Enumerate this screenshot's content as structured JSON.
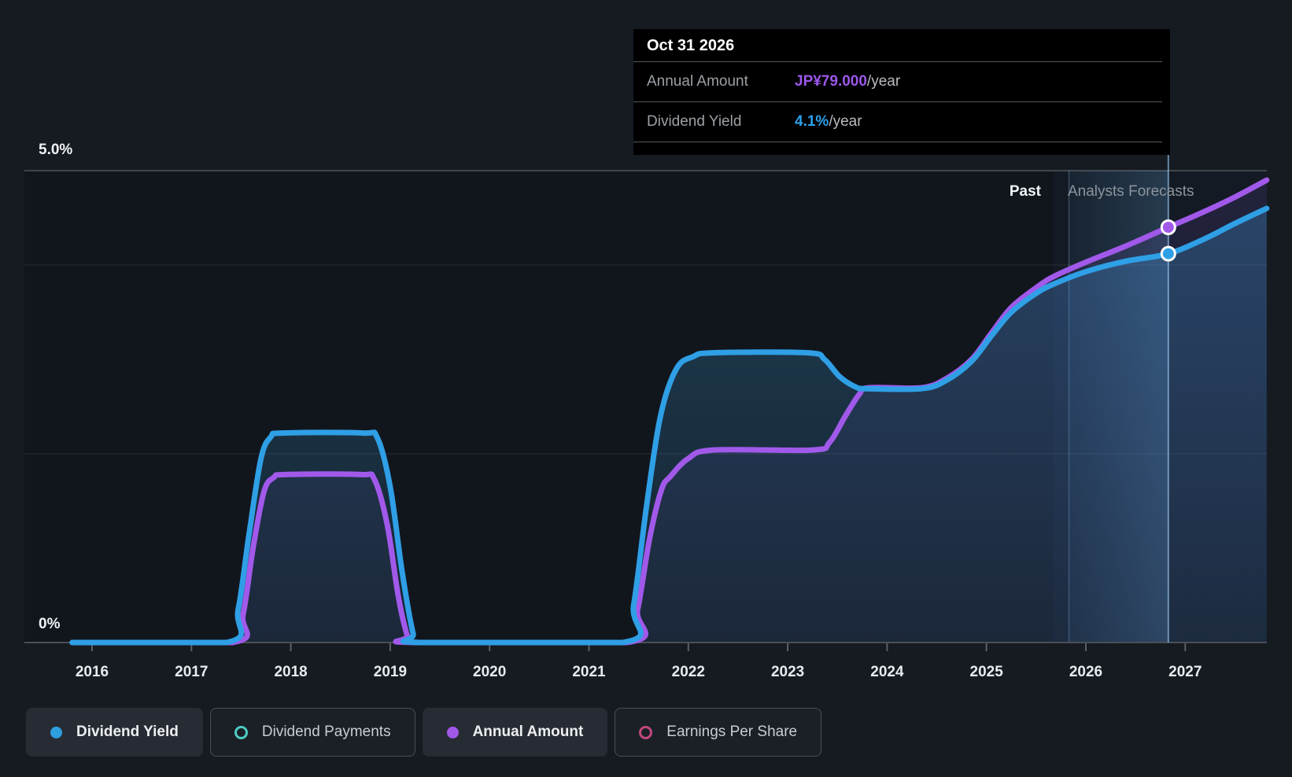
{
  "axis": {
    "y_max_label": "5.0%",
    "y_min_label": "0%"
  },
  "annotations": {
    "past_label": "Past",
    "forecast_label": "Analysts Forecasts"
  },
  "tooltip": {
    "title": "Oct 31 2026",
    "rows": [
      {
        "label": "Annual Amount",
        "value": "JP¥79.000",
        "suffix": "/year",
        "value_color": "#9b58ea"
      },
      {
        "label": "Dividend Yield",
        "value": "4.1%",
        "suffix": "/year",
        "value_color": "#2da0ea"
      }
    ]
  },
  "legend": {
    "items": [
      {
        "label": "Dividend Yield",
        "color": "#2e9fe0",
        "marker": "filled",
        "active": true
      },
      {
        "label": "Dividend Payments",
        "color": "#4ecdc4",
        "marker": "outline",
        "active": false
      },
      {
        "label": "Annual Amount",
        "color": "#a158e8",
        "marker": "filled",
        "active": true
      },
      {
        "label": "Earnings Per Share",
        "color": "#c2487e",
        "marker": "outline",
        "active": false
      }
    ]
  },
  "chart_data": {
    "type": "line",
    "title": "Dividend history and forecast",
    "x_ticks": [
      "2016",
      "2017",
      "2018",
      "2019",
      "2020",
      "2021",
      "2022",
      "2023",
      "2024",
      "2025",
      "2026",
      "2027"
    ],
    "x_range": [
      2015.8,
      2027.82
    ],
    "ylim": [
      0,
      5
    ],
    "gridline_values": [
      5,
      4,
      2,
      0
    ],
    "grid": true,
    "legend_position": "bottom",
    "past_forecast_boundary_year": 2025.67,
    "highlight_band_years": [
      2025.83,
      2026.83
    ],
    "hover_year": 2026.83,
    "series": [
      {
        "name": "Dividend Yield",
        "color": "#2f9fe6",
        "unit": "%",
        "points": [
          [
            2015.8,
            0
          ],
          [
            2017.35,
            0
          ],
          [
            2017.47,
            0.35
          ],
          [
            2017.58,
            1.15
          ],
          [
            2017.7,
            1.95
          ],
          [
            2017.8,
            2.18
          ],
          [
            2017.92,
            2.22
          ],
          [
            2018.72,
            2.22
          ],
          [
            2018.87,
            2.17
          ],
          [
            2019.0,
            1.65
          ],
          [
            2019.12,
            0.75
          ],
          [
            2019.23,
            0.1
          ],
          [
            2019.3,
            0
          ],
          [
            2021.34,
            0
          ],
          [
            2021.45,
            0.4
          ],
          [
            2021.58,
            1.45
          ],
          [
            2021.72,
            2.4
          ],
          [
            2021.88,
            2.9
          ],
          [
            2022.05,
            3.03
          ],
          [
            2022.25,
            3.07
          ],
          [
            2023.2,
            3.07
          ],
          [
            2023.37,
            3.0
          ],
          [
            2023.52,
            2.82
          ],
          [
            2023.68,
            2.71
          ],
          [
            2023.8,
            2.69
          ],
          [
            2024.35,
            2.69
          ],
          [
            2024.6,
            2.78
          ],
          [
            2024.85,
            2.98
          ],
          [
            2025.05,
            3.25
          ],
          [
            2025.25,
            3.5
          ],
          [
            2025.5,
            3.7
          ],
          [
            2025.68,
            3.8
          ],
          [
            2026.0,
            3.93
          ],
          [
            2026.4,
            4.04
          ],
          [
            2026.83,
            4.12
          ],
          [
            2027.2,
            4.28
          ],
          [
            2027.5,
            4.44
          ],
          [
            2027.82,
            4.6
          ]
        ]
      },
      {
        "name": "Annual Amount",
        "color": "#a159ea",
        "unit": "%",
        "points": [
          [
            2015.8,
            0
          ],
          [
            2017.41,
            0
          ],
          [
            2017.52,
            0.3
          ],
          [
            2017.62,
            1.0
          ],
          [
            2017.73,
            1.6
          ],
          [
            2017.83,
            1.75
          ],
          [
            2017.95,
            1.78
          ],
          [
            2018.7,
            1.78
          ],
          [
            2018.84,
            1.73
          ],
          [
            2018.97,
            1.25
          ],
          [
            2019.08,
            0.5
          ],
          [
            2019.17,
            0.08
          ],
          [
            2019.23,
            0
          ],
          [
            2021.38,
            0
          ],
          [
            2021.49,
            0.35
          ],
          [
            2021.61,
            1.1
          ],
          [
            2021.73,
            1.62
          ],
          [
            2021.82,
            1.76
          ],
          [
            2022.0,
            1.95
          ],
          [
            2022.25,
            2.04
          ],
          [
            2023.25,
            2.04
          ],
          [
            2023.42,
            2.12
          ],
          [
            2023.58,
            2.4
          ],
          [
            2023.72,
            2.63
          ],
          [
            2023.82,
            2.7
          ],
          [
            2024.35,
            2.7
          ],
          [
            2024.6,
            2.8
          ],
          [
            2024.85,
            3.0
          ],
          [
            2025.05,
            3.28
          ],
          [
            2025.25,
            3.55
          ],
          [
            2025.5,
            3.76
          ],
          [
            2025.68,
            3.88
          ],
          [
            2026.0,
            4.03
          ],
          [
            2026.4,
            4.2
          ],
          [
            2026.83,
            4.4
          ],
          [
            2027.2,
            4.57
          ],
          [
            2027.5,
            4.72
          ],
          [
            2027.82,
            4.9
          ]
        ]
      }
    ],
    "markers": [
      {
        "series": "Annual Amount",
        "year": 2026.83,
        "value": 4.4,
        "color": "#a159ea"
      },
      {
        "series": "Dividend Yield",
        "year": 2026.83,
        "value": 4.12,
        "color": "#2f9fe6"
      }
    ]
  }
}
